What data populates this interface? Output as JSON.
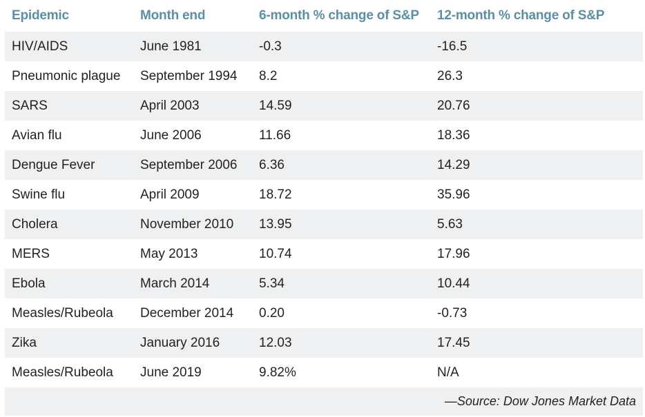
{
  "table": {
    "headers": [
      "Epidemic",
      "Month end",
      "6-month % change of S&P",
      "12-month % change of S&P"
    ],
    "rows": [
      [
        "HIV/AIDS",
        "June 1981",
        "-0.3",
        "-16.5"
      ],
      [
        "Pneumonic plague",
        "September 1994",
        "8.2",
        "26.3"
      ],
      [
        "SARS",
        "April 2003",
        "14.59",
        "20.76"
      ],
      [
        "Avian flu",
        "June 2006",
        "11.66",
        "18.36"
      ],
      [
        "Dengue Fever",
        "September 2006",
        "6.36",
        "14.29"
      ],
      [
        "Swine flu",
        "April 2009",
        "18.72",
        "35.96"
      ],
      [
        "Cholera",
        "November 2010",
        "13.95",
        "5.63"
      ],
      [
        "MERS",
        "May 2013",
        "10.74",
        "17.96"
      ],
      [
        "Ebola",
        "March 2014",
        "5.34",
        "10.44"
      ],
      [
        "Measles/Rubeola",
        "December 2014",
        "0.20",
        "-0.73"
      ],
      [
        "Zika",
        "January 2016",
        "12.03",
        "17.45"
      ],
      [
        "Measles/Rubeola",
        "June 2019",
        "9.82%",
        "N/A"
      ]
    ],
    "source": "—Source: Dow Jones Market Data"
  },
  "colors": {
    "header_text": "#5a8fa8",
    "stripe": "#eef0f1",
    "body_text": "#222222"
  }
}
